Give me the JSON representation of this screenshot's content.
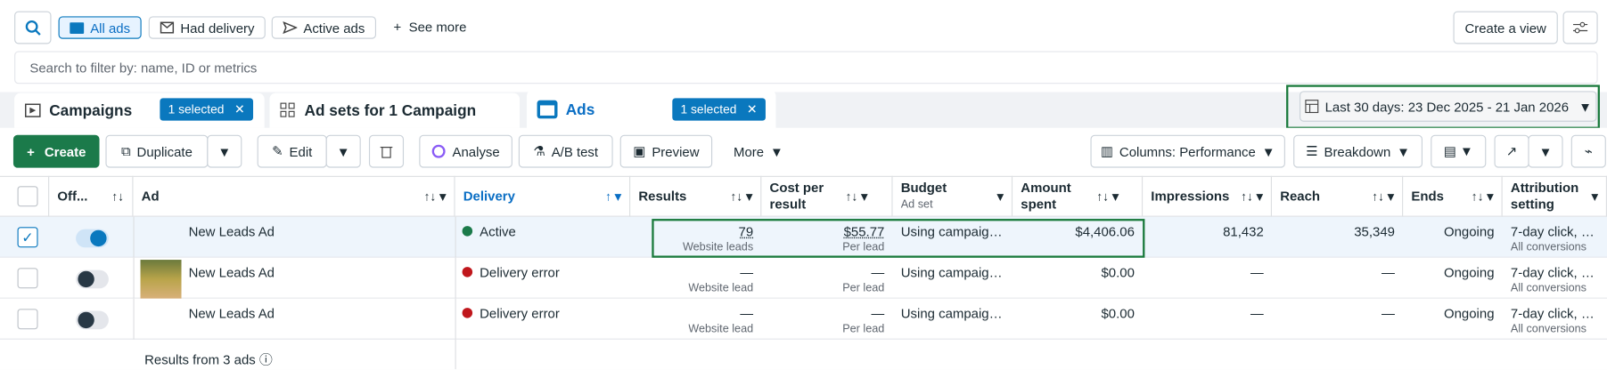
{
  "toolbar": {
    "filters": [
      "All ads",
      "Had delivery",
      "Active ads"
    ],
    "see_more": "See more",
    "create_view": "Create a view",
    "search_placeholder": "Search to filter by: name, ID or metrics",
    "date_range": "Last 30 days: 23 Dec 2025 - 21 Jan 2026"
  },
  "tabs": [
    {
      "label": "Campaigns",
      "badge": "1 selected"
    },
    {
      "label": "Ad sets for 1 Campaign"
    },
    {
      "label": "Ads",
      "badge": "1 selected"
    }
  ],
  "actions": {
    "create": "Create",
    "duplicate": "Duplicate",
    "edit": "Edit",
    "analyse": "Analyse",
    "ab_test": "A/B test",
    "preview": "Preview",
    "more": "More",
    "columns": "Columns: Performance",
    "breakdown": "Breakdown"
  },
  "table": {
    "columns": [
      {
        "label": "Off..."
      },
      {
        "label": "Ad"
      },
      {
        "label": "Delivery"
      },
      {
        "label": "Results"
      },
      {
        "label": "Cost per result"
      },
      {
        "label": "Budget",
        "sub": "Ad set"
      },
      {
        "label": "Amount spent"
      },
      {
        "label": "Impressions"
      },
      {
        "label": "Reach"
      },
      {
        "label": "Ends"
      },
      {
        "label": "Attribution setting"
      }
    ],
    "rows": [
      {
        "selected": true,
        "on": true,
        "name": "New Leads Ad",
        "delivery": "Active",
        "delivery_color": "#1b7a4a",
        "results": "79",
        "results_sub": "Website leads",
        "cost": "$55.77",
        "cost_sub": "Per lead",
        "budget": "Using campaign...",
        "amount": "$4,406.06",
        "impressions": "81,432",
        "reach": "35,349",
        "ends": "Ongoing",
        "attribution": "7-day click, 1-...",
        "attribution_sub": "All conversions"
      },
      {
        "selected": false,
        "on": false,
        "thumbnail": true,
        "name": "New Leads Ad",
        "delivery": "Delivery error",
        "delivery_color": "#c0171c",
        "results": "—",
        "results_sub": "Website lead",
        "cost": "—",
        "cost_sub": "Per lead",
        "budget": "Using campaign...",
        "amount": "$0.00",
        "impressions": "—",
        "reach": "—",
        "ends": "Ongoing",
        "attribution": "7-day click, 1-...",
        "attribution_sub": "All conversions"
      },
      {
        "selected": false,
        "on": false,
        "name": "New Leads Ad",
        "delivery": "Delivery error",
        "delivery_color": "#c0171c",
        "results": "—",
        "results_sub": "Website lead",
        "cost": "—",
        "cost_sub": "Per lead",
        "budget": "Using campaign...",
        "amount": "$0.00",
        "impressions": "—",
        "reach": "—",
        "ends": "Ongoing",
        "attribution": "7-day click, 1-...",
        "attribution_sub": "All conversions"
      }
    ],
    "footer": "Results from 3 ads"
  }
}
